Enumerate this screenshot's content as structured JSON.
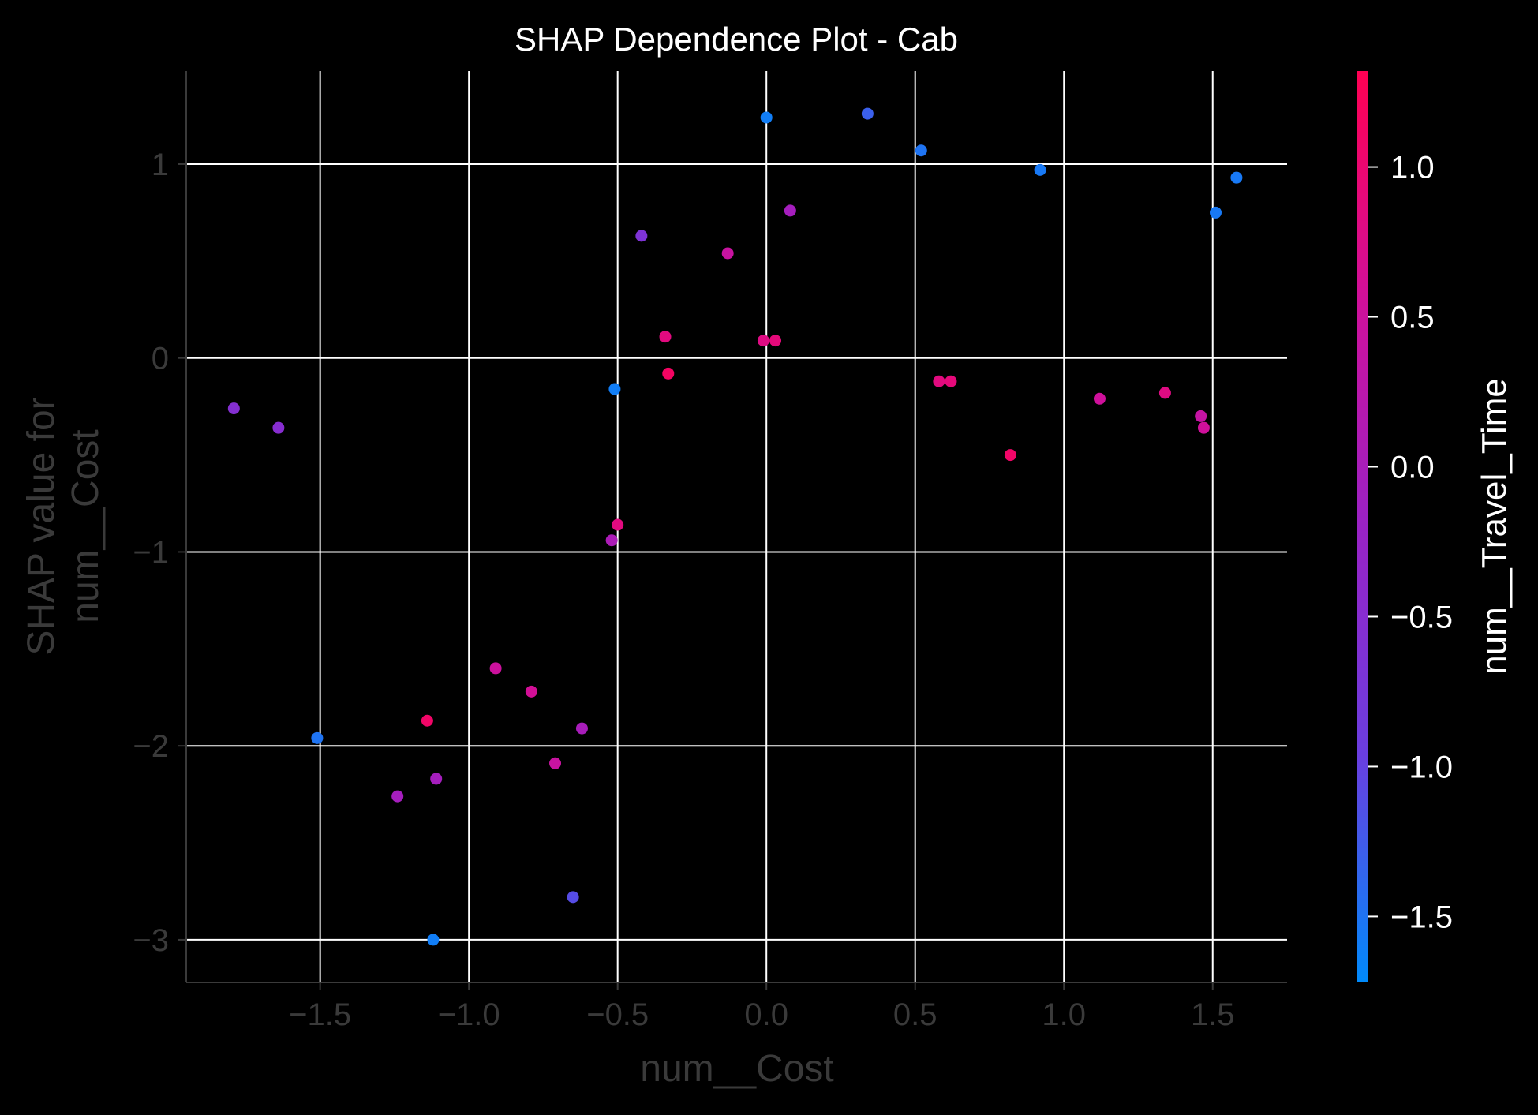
{
  "chart_data": {
    "type": "scatter",
    "title": "SHAP Dependence Plot - Cab",
    "xlabel": "num__Cost",
    "ylabel": "SHAP value for\nnum__Cost",
    "xlim": [
      -1.95,
      1.75
    ],
    "ylim": [
      -3.22,
      1.48
    ],
    "x_ticks": [
      -1.5,
      -1.0,
      -0.5,
      0.0,
      0.5,
      1.0,
      1.5
    ],
    "x_tick_labels": [
      "−1.5",
      "−1.0",
      "−0.5",
      "0.0",
      "0.5",
      "1.0",
      "1.5"
    ],
    "y_ticks": [
      1,
      0,
      -1,
      -2,
      -3
    ],
    "y_tick_labels": [
      "1",
      "0",
      "−1",
      "−2",
      "−3"
    ],
    "grid": true,
    "colorbar": {
      "label": "num__Travel_Time",
      "range": [
        -1.72,
        1.32
      ],
      "ticks": [
        1.0,
        0.5,
        0.0,
        -0.5,
        -1.0,
        -1.5
      ],
      "tick_labels": [
        "1.0",
        "0.5",
        "0.0",
        "−0.5",
        "−1.0",
        "−1.5"
      ],
      "colormap": [
        "#008afb",
        "#6a3ee0",
        "#9a22c5",
        "#d0109a",
        "#ff0052"
      ]
    },
    "points": [
      {
        "x": -1.79,
        "y": -0.26,
        "c": -0.55
      },
      {
        "x": -1.64,
        "y": -0.36,
        "c": -0.5
      },
      {
        "x": -1.51,
        "y": -1.96,
        "c": -1.5
      },
      {
        "x": -1.24,
        "y": -2.26,
        "c": -0.05
      },
      {
        "x": -1.14,
        "y": -1.87,
        "c": 1.1
      },
      {
        "x": -1.11,
        "y": -2.17,
        "c": -0.05
      },
      {
        "x": -1.12,
        "y": -3.0,
        "c": -1.6
      },
      {
        "x": -0.91,
        "y": -1.6,
        "c": 0.5
      },
      {
        "x": -0.79,
        "y": -1.72,
        "c": 0.6
      },
      {
        "x": -0.71,
        "y": -2.09,
        "c": 0.45
      },
      {
        "x": -0.65,
        "y": -2.78,
        "c": -1.1
      },
      {
        "x": -0.62,
        "y": -1.91,
        "c": 0.0
      },
      {
        "x": -0.52,
        "y": -0.94,
        "c": 0.05
      },
      {
        "x": -0.5,
        "y": -0.86,
        "c": 0.85
      },
      {
        "x": -0.51,
        "y": -0.16,
        "c": -1.6
      },
      {
        "x": -0.42,
        "y": 0.63,
        "c": -0.65
      },
      {
        "x": -0.34,
        "y": 0.11,
        "c": 0.85
      },
      {
        "x": -0.33,
        "y": -0.08,
        "c": 1.15
      },
      {
        "x": -0.13,
        "y": 0.54,
        "c": 0.45
      },
      {
        "x": -0.01,
        "y": 0.09,
        "c": 0.8
      },
      {
        "x": 0.03,
        "y": 0.09,
        "c": 0.9
      },
      {
        "x": 0.0,
        "y": 1.24,
        "c": -1.6
      },
      {
        "x": 0.08,
        "y": 0.76,
        "c": -0.05
      },
      {
        "x": 0.34,
        "y": 1.26,
        "c": -1.3
      },
      {
        "x": 0.52,
        "y": 1.07,
        "c": -1.5
      },
      {
        "x": 0.58,
        "y": -0.12,
        "c": 0.85
      },
      {
        "x": 0.62,
        "y": -0.12,
        "c": 0.9
      },
      {
        "x": 0.82,
        "y": -0.5,
        "c": 1.1
      },
      {
        "x": 0.92,
        "y": 0.97,
        "c": -1.55
      },
      {
        "x": 1.12,
        "y": -0.21,
        "c": 0.55
      },
      {
        "x": 1.34,
        "y": -0.18,
        "c": 0.8
      },
      {
        "x": 1.46,
        "y": -0.3,
        "c": 0.4
      },
      {
        "x": 1.47,
        "y": -0.36,
        "c": 0.55
      },
      {
        "x": 1.51,
        "y": 0.75,
        "c": -1.55
      },
      {
        "x": 1.58,
        "y": 0.93,
        "c": -1.55
      }
    ]
  }
}
